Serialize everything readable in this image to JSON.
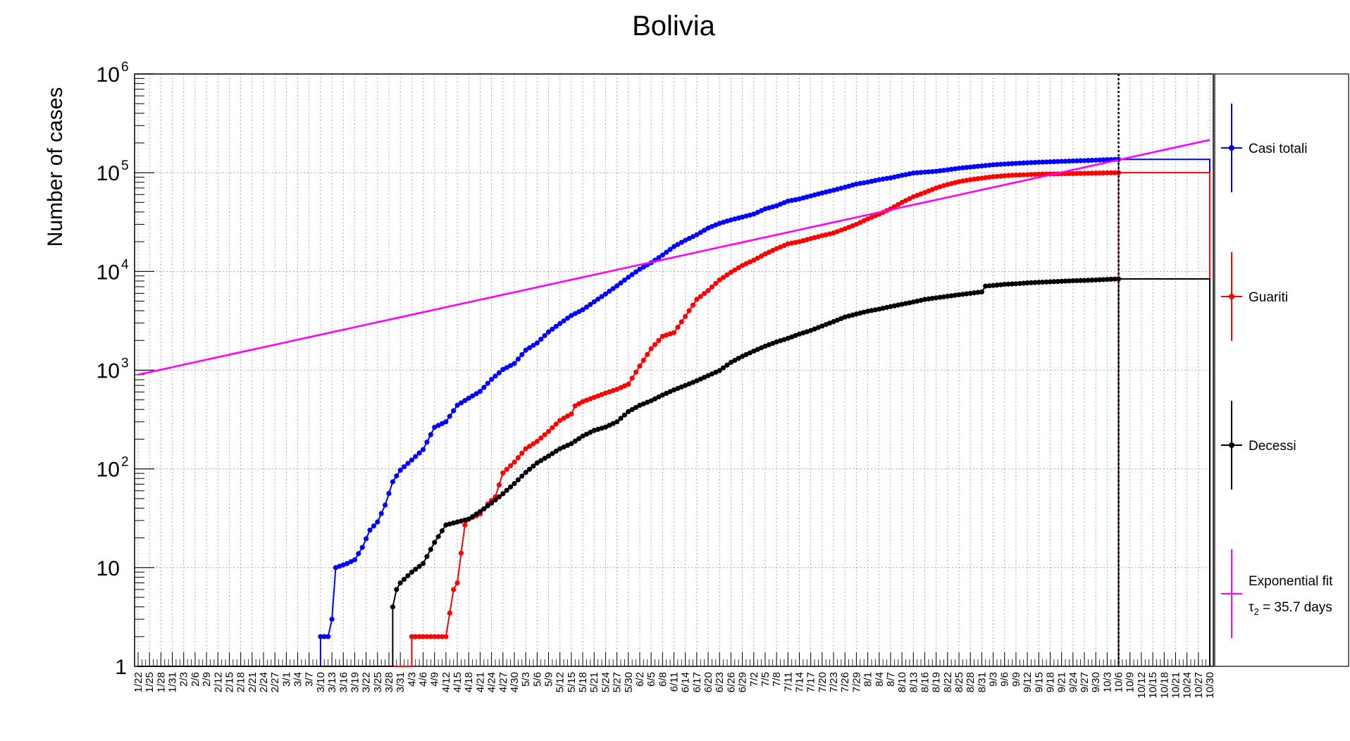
{
  "chart_data": {
    "type": "line",
    "title": "Bolivia",
    "ylabel": "Number of cases",
    "xlabel": "",
    "yscale": "log",
    "ylim": [
      1,
      1000000
    ],
    "y_tick_labels": [
      "1",
      "10",
      "10",
      "10",
      "10",
      "10",
      "10"
    ],
    "y_tick_exponents": [
      "",
      "",
      "2",
      "3",
      "4",
      "5",
      "6"
    ],
    "x_tick_labels": [
      "1/22",
      "1/25",
      "1/28",
      "1/31",
      "2/3",
      "2/6",
      "2/9",
      "2/12",
      "2/15",
      "2/18",
      "2/21",
      "2/24",
      "2/27",
      "3/1",
      "3/4",
      "3/7",
      "3/10",
      "3/13",
      "3/16",
      "3/19",
      "3/22",
      "3/25",
      "3/28",
      "3/31",
      "4/3",
      "4/6",
      "4/9",
      "4/12",
      "4/15",
      "4/18",
      "4/21",
      "4/24",
      "4/27",
      "4/30",
      "5/3",
      "5/6",
      "5/9",
      "5/12",
      "5/15",
      "5/18",
      "5/21",
      "5/24",
      "5/27",
      "5/30",
      "6/2",
      "6/5",
      "6/8",
      "6/11",
      "6/14",
      "6/17",
      "6/20",
      "6/23",
      "6/26",
      "6/29",
      "7/2",
      "7/5",
      "7/8",
      "7/11",
      "7/14",
      "7/17",
      "7/20",
      "7/23",
      "7/26",
      "7/29",
      "8/1",
      "8/4",
      "8/7",
      "8/10",
      "8/13",
      "8/16",
      "8/19",
      "8/22",
      "8/25",
      "8/28",
      "8/31",
      "9/3",
      "9/6",
      "9/9",
      "9/12",
      "9/15",
      "9/18",
      "9/21",
      "9/24",
      "9/27",
      "9/30",
      "10/3",
      "10/6",
      "10/9",
      "10/12",
      "10/15",
      "10/18",
      "10/21",
      "10/24",
      "10/27",
      "10/30"
    ],
    "grid": true,
    "legend_position": "right",
    "vertical_marker_date": "10/6",
    "series": [
      {
        "name": "Casi totali",
        "color": "#0000ff",
        "points": [
          [
            "3/10",
            2
          ],
          [
            "3/12",
            2
          ],
          [
            "3/13",
            3
          ],
          [
            "3/14",
            10
          ],
          [
            "3/17",
            11
          ],
          [
            "3/19",
            12
          ],
          [
            "3/21",
            16
          ],
          [
            "3/23",
            24
          ],
          [
            "3/25",
            29
          ],
          [
            "3/27",
            43
          ],
          [
            "3/29",
            74
          ],
          [
            "3/31",
            97
          ],
          [
            "4/3",
            123
          ],
          [
            "4/6",
            157
          ],
          [
            "4/9",
            264
          ],
          [
            "4/12",
            300
          ],
          [
            "4/15",
            441
          ],
          [
            "4/18",
            520
          ],
          [
            "4/21",
            609
          ],
          [
            "4/24",
            807
          ],
          [
            "4/27",
            1014
          ],
          [
            "4/30",
            1167
          ],
          [
            "5/3",
            1594
          ],
          [
            "5/6",
            1886
          ],
          [
            "5/9",
            2437
          ],
          [
            "5/12",
            2964
          ],
          [
            "5/15",
            3577
          ],
          [
            "5/18",
            4088
          ],
          [
            "5/21",
            4919
          ],
          [
            "5/24",
            5915
          ],
          [
            "5/27",
            7136
          ],
          [
            "5/30",
            8731
          ],
          [
            "6/2",
            10531
          ],
          [
            "6/5",
            12245
          ],
          [
            "6/8",
            14644
          ],
          [
            "6/11",
            17842
          ],
          [
            "6/14",
            20685
          ],
          [
            "6/17",
            23512
          ],
          [
            "6/20",
            27487
          ],
          [
            "6/23",
            30676
          ],
          [
            "6/26",
            33219
          ],
          [
            "6/29",
            35528
          ],
          [
            "7/2",
            38071
          ],
          [
            "7/5",
            42984
          ],
          [
            "7/8",
            46213
          ],
          [
            "7/11",
            51509
          ],
          [
            "7/14",
            54156
          ],
          [
            "7/17",
            58138
          ],
          [
            "7/20",
            62357
          ],
          [
            "7/23",
            66456
          ],
          [
            "7/26",
            71181
          ],
          [
            "7/29",
            76789
          ],
          [
            "8/1",
            80153
          ],
          [
            "8/4",
            84937
          ],
          [
            "8/7",
            88625
          ],
          [
            "8/10",
            93896
          ],
          [
            "8/13",
            99146
          ],
          [
            "8/16",
            101223
          ],
          [
            "8/19",
            103325
          ],
          [
            "8/22",
            106886
          ],
          [
            "8/25",
            111000
          ],
          [
            "8/28",
            114051
          ],
          [
            "8/31",
            117094
          ],
          [
            "9/3",
            120227
          ],
          [
            "9/6",
            122308
          ],
          [
            "9/9",
            124205
          ],
          [
            "9/12",
            125982
          ],
          [
            "9/15",
            127619
          ],
          [
            "9/18",
            128872
          ],
          [
            "9/21",
            130129
          ],
          [
            "9/24",
            131453
          ],
          [
            "9/27",
            132618
          ],
          [
            "9/30",
            133901
          ],
          [
            "10/3",
            135311
          ],
          [
            "10/6",
            136569
          ]
        ]
      },
      {
        "name": "Guariti",
        "color": "#ff0000",
        "points": [
          [
            "4/3",
            2
          ],
          [
            "4/6",
            2
          ],
          [
            "4/9",
            2
          ],
          [
            "4/12",
            2
          ],
          [
            "4/14",
            6
          ],
          [
            "4/15",
            7
          ],
          [
            "4/16",
            14
          ],
          [
            "4/17",
            27
          ],
          [
            "4/18",
            31
          ],
          [
            "4/21",
            35
          ],
          [
            "4/23",
            44
          ],
          [
            "4/25",
            52
          ],
          [
            "4/27",
            91
          ],
          [
            "4/30",
            117
          ],
          [
            "5/3",
            160
          ],
          [
            "5/6",
            190
          ],
          [
            "5/9",
            240
          ],
          [
            "5/12",
            310
          ],
          [
            "5/15",
            360
          ],
          [
            "5/16",
            435
          ],
          [
            "5/18",
            480
          ],
          [
            "5/21",
            530
          ],
          [
            "5/24",
            585
          ],
          [
            "5/27",
            640
          ],
          [
            "5/30",
            720
          ],
          [
            "6/2",
            1100
          ],
          [
            "6/5",
            1650
          ],
          [
            "6/8",
            2200
          ],
          [
            "6/11",
            2400
          ],
          [
            "6/14",
            3500
          ],
          [
            "6/17",
            5200
          ],
          [
            "6/20",
            6400
          ],
          [
            "6/23",
            8200
          ],
          [
            "6/26",
            9800
          ],
          [
            "6/29",
            11500
          ],
          [
            "7/2",
            13000
          ],
          [
            "7/5",
            15000
          ],
          [
            "7/8",
            17000
          ],
          [
            "7/11",
            19000
          ],
          [
            "7/14",
            20000
          ],
          [
            "7/17",
            21500
          ],
          [
            "7/20",
            23000
          ],
          [
            "7/23",
            24500
          ],
          [
            "7/26",
            27000
          ],
          [
            "7/29",
            30000
          ],
          [
            "8/1",
            34000
          ],
          [
            "8/4",
            38000
          ],
          [
            "8/7",
            43000
          ],
          [
            "8/10",
            50000
          ],
          [
            "8/13",
            57000
          ],
          [
            "8/16",
            63000
          ],
          [
            "8/19",
            70000
          ],
          [
            "8/22",
            76000
          ],
          [
            "8/25",
            81000
          ],
          [
            "8/28",
            85000
          ],
          [
            "8/31",
            88000
          ],
          [
            "9/3",
            91000
          ],
          [
            "9/6",
            93000
          ],
          [
            "9/9",
            94500
          ],
          [
            "9/12",
            95500
          ],
          [
            "9/15",
            96500
          ],
          [
            "9/18",
            97000
          ],
          [
            "9/21",
            97500
          ],
          [
            "9/24",
            98000
          ],
          [
            "9/27",
            98500
          ],
          [
            "9/30",
            99000
          ],
          [
            "10/3",
            99500
          ],
          [
            "10/6",
            100000
          ]
        ]
      },
      {
        "name": "Decessi",
        "color": "#000000",
        "points": [
          [
            "3/29",
            4
          ],
          [
            "3/30",
            6
          ],
          [
            "3/31",
            7
          ],
          [
            "4/3",
            9
          ],
          [
            "4/6",
            11
          ],
          [
            "4/9",
            18
          ],
          [
            "4/12",
            27
          ],
          [
            "4/15",
            29
          ],
          [
            "4/18",
            31
          ],
          [
            "4/21",
            37
          ],
          [
            "4/24",
            45
          ],
          [
            "4/27",
            56
          ],
          [
            "4/30",
            71
          ],
          [
            "5/3",
            92
          ],
          [
            "5/6",
            115
          ],
          [
            "5/9",
            135
          ],
          [
            "5/12",
            160
          ],
          [
            "5/15",
            180
          ],
          [
            "5/18",
            215
          ],
          [
            "5/21",
            245
          ],
          [
            "5/24",
            265
          ],
          [
            "5/27",
            300
          ],
          [
            "5/30",
            380
          ],
          [
            "6/2",
            440
          ],
          [
            "6/5",
            490
          ],
          [
            "6/8",
            560
          ],
          [
            "6/11",
            630
          ],
          [
            "6/14",
            700
          ],
          [
            "6/17",
            780
          ],
          [
            "6/20",
            880
          ],
          [
            "6/23",
            990
          ],
          [
            "6/26",
            1200
          ],
          [
            "6/29",
            1380
          ],
          [
            "7/2",
            1560
          ],
          [
            "7/5",
            1750
          ],
          [
            "7/8",
            1930
          ],
          [
            "7/11",
            2100
          ],
          [
            "7/14",
            2320
          ],
          [
            "7/17",
            2520
          ],
          [
            "7/20",
            2800
          ],
          [
            "7/23",
            3100
          ],
          [
            "7/26",
            3450
          ],
          [
            "7/29",
            3700
          ],
          [
            "8/1",
            3950
          ],
          [
            "8/4",
            4150
          ],
          [
            "8/7",
            4400
          ],
          [
            "8/10",
            4650
          ],
          [
            "8/13",
            4900
          ],
          [
            "8/16",
            5200
          ],
          [
            "8/19",
            5400
          ],
          [
            "8/22",
            5600
          ],
          [
            "8/25",
            5800
          ],
          [
            "8/28",
            6000
          ],
          [
            "8/31",
            6200
          ],
          [
            "9/1",
            7100
          ],
          [
            "9/3",
            7200
          ],
          [
            "9/6",
            7400
          ],
          [
            "9/9",
            7500
          ],
          [
            "9/12",
            7650
          ],
          [
            "9/15",
            7750
          ],
          [
            "9/18",
            7850
          ],
          [
            "9/21",
            7950
          ],
          [
            "9/24",
            8050
          ],
          [
            "9/27",
            8100
          ],
          [
            "9/30",
            8200
          ],
          [
            "10/3",
            8300
          ],
          [
            "10/6",
            8400
          ]
        ]
      },
      {
        "name": "Exponential fit",
        "name_line2_prefix": "τ",
        "name_line2_subscript": "2",
        "name_line2_rest": " = 35.7 days",
        "color": "#ff00ff",
        "fit": {
          "start_date": "1/22",
          "start_value": 900,
          "doubling_time_days": 35.7,
          "end_date": "10/30"
        }
      }
    ]
  }
}
